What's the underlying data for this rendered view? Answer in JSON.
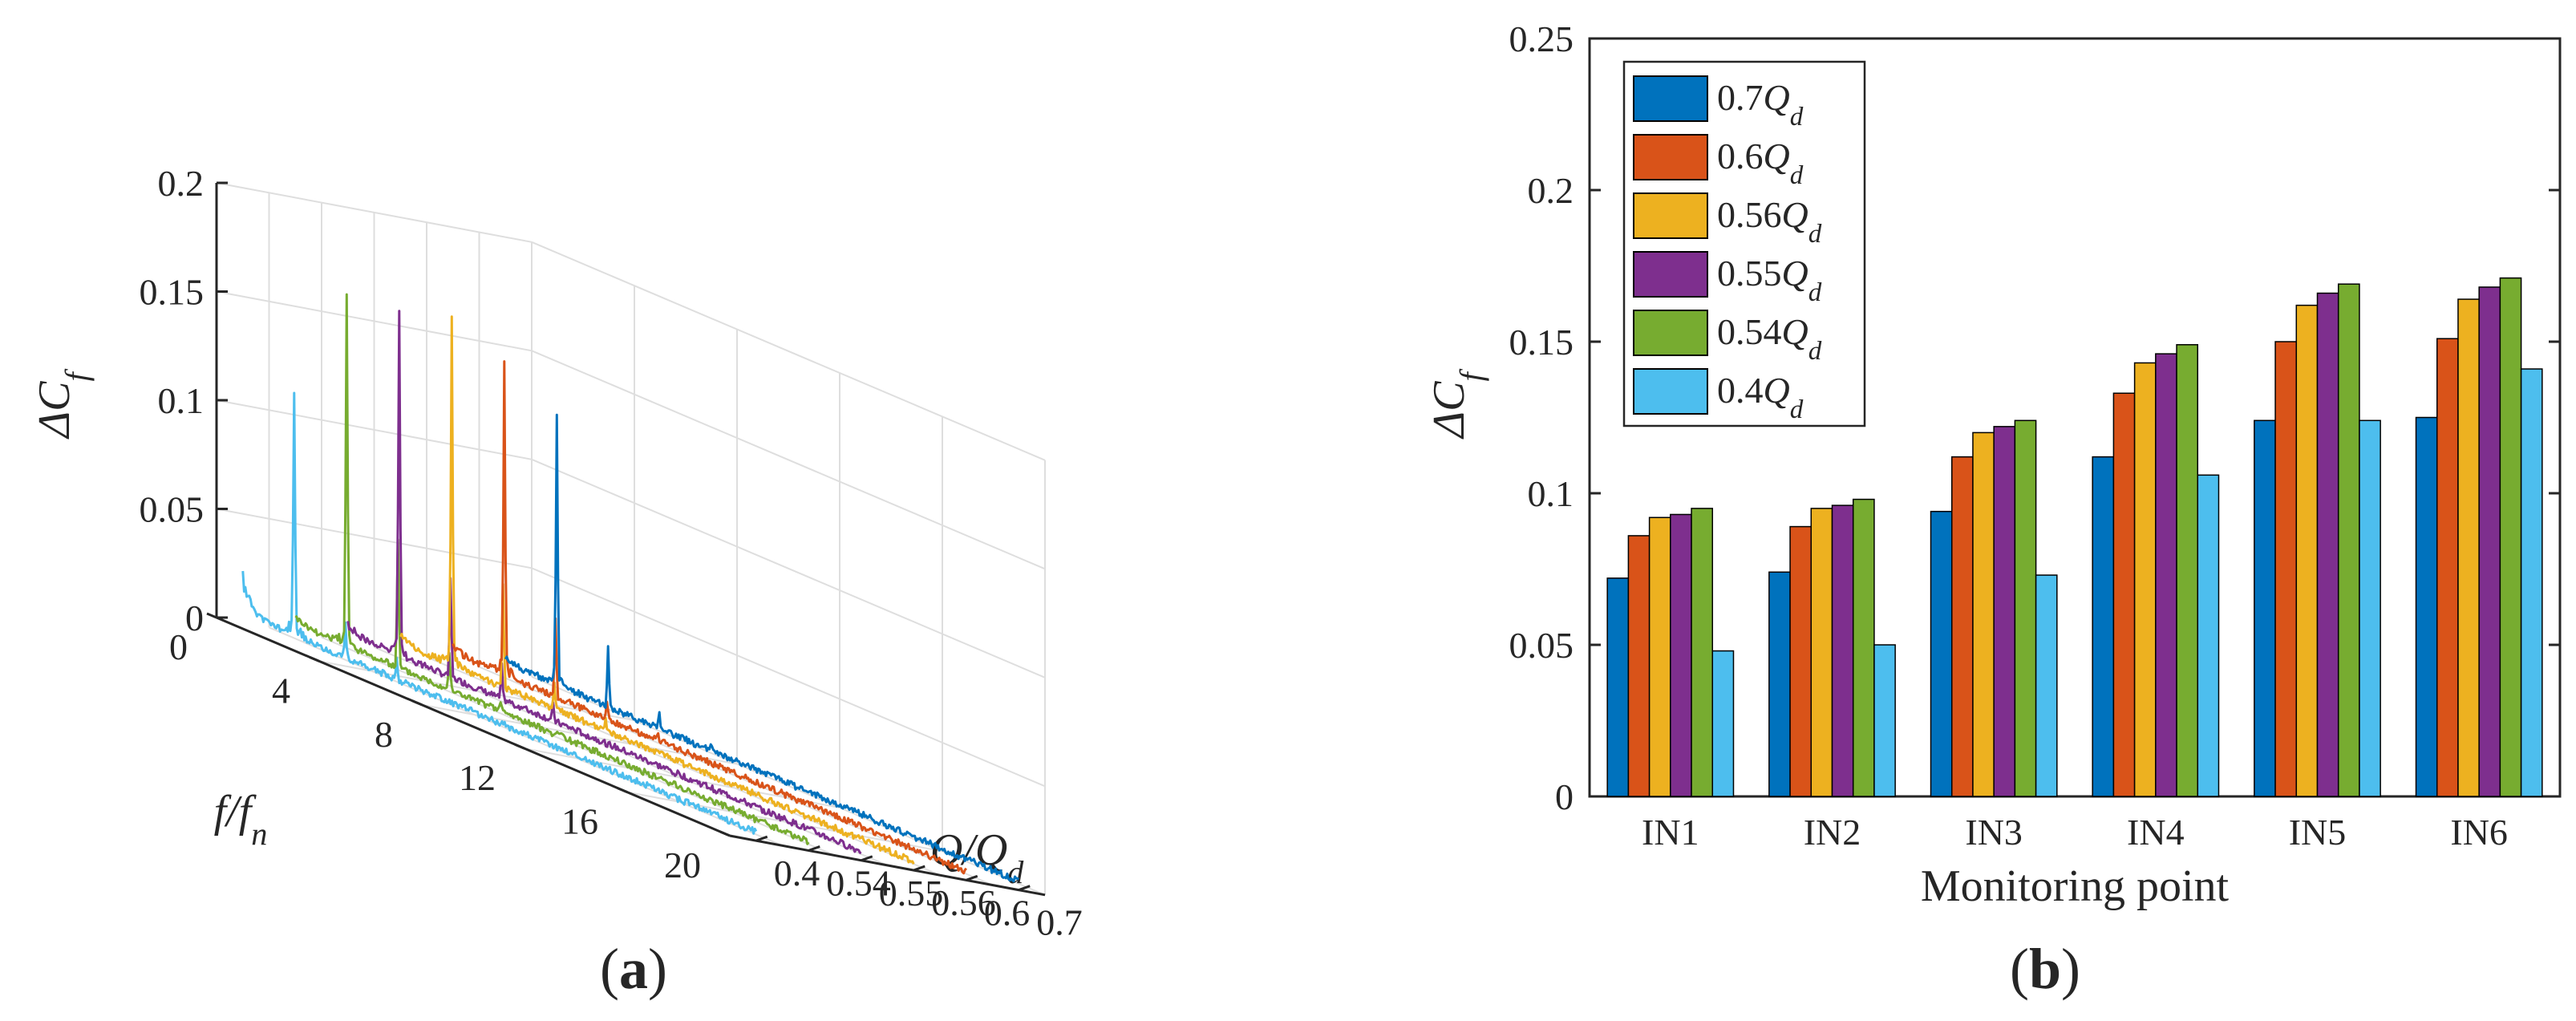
{
  "figure": {
    "panel_a": {
      "open": "(",
      "letter": "a",
      "close": ")"
    },
    "panel_b": {
      "open": "(",
      "letter": "b",
      "close": ")"
    }
  },
  "chart_data": [
    {
      "type": "line",
      "subtype": "3d-waterfall",
      "title": "",
      "zlabel": {
        "main": "ΔC",
        "sub": "f"
      },
      "xlabel": {
        "main": "f/f",
        "sub": "n"
      },
      "ylabel": {
        "main": "Q/Q",
        "sub": "d"
      },
      "xlim": [
        0,
        20
      ],
      "zlim": [
        0,
        0.2
      ],
      "x_ticks": [
        "0",
        "4",
        "8",
        "12",
        "16",
        "20"
      ],
      "z_ticks": [
        "0",
        "0.05",
        "0.1",
        "0.15",
        "0.2"
      ],
      "y_tick_labels": [
        "0.4",
        "0.54",
        "0.55",
        "0.56",
        "0.6",
        "0.7"
      ],
      "series": [
        {
          "name": "0.4",
          "color": "#4DBEEE",
          "low_freq_peak": 0.02,
          "peaks": [
            {
              "f": 2,
              "value": 0.105
            },
            {
              "f": 4,
              "value": 0.018
            },
            {
              "f": 6,
              "value": 0.012
            }
          ]
        },
        {
          "name": "0.54",
          "color": "#77AC30",
          "low_freq_peak": 0.005,
          "peaks": [
            {
              "f": 2,
              "value": 0.159
            },
            {
              "f": 4,
              "value": 0.062
            },
            {
              "f": 6,
              "value": 0.02
            },
            {
              "f": 8,
              "value": 0.008
            }
          ]
        },
        {
          "name": "0.55",
          "color": "#7E2F8E",
          "low_freq_peak": 0.006,
          "peaks": [
            {
              "f": 2,
              "value": 0.16
            },
            {
              "f": 4,
              "value": 0.05
            },
            {
              "f": 6,
              "value": 0.018
            },
            {
              "f": 8,
              "value": 0.01
            }
          ]
        },
        {
          "name": "0.56",
          "color": "#EDB120",
          "low_freq_peak": 0.005,
          "peaks": [
            {
              "f": 2,
              "value": 0.153
            },
            {
              "f": 4,
              "value": 0.05
            },
            {
              "f": 6,
              "value": 0.015
            },
            {
              "f": 8,
              "value": 0.008
            }
          ]
        },
        {
          "name": "0.6",
          "color": "#D95319",
          "low_freq_peak": 0.005,
          "peaks": [
            {
              "f": 2,
              "value": 0.141
            },
            {
              "f": 4,
              "value": 0.04
            },
            {
              "f": 6,
              "value": 0.012
            },
            {
              "f": 8,
              "value": 0.006
            }
          ]
        },
        {
          "name": "0.7",
          "color": "#0072BD",
          "low_freq_peak": 0.004,
          "peaks": [
            {
              "f": 2,
              "value": 0.125
            },
            {
              "f": 4,
              "value": 0.03
            },
            {
              "f": 6,
              "value": 0.01
            },
            {
              "f": 8,
              "value": 0.006
            }
          ]
        }
      ]
    },
    {
      "type": "bar",
      "title": "",
      "xlabel": "Monitoring point",
      "ylabel": {
        "main": "ΔC",
        "sub": "f"
      },
      "ylim": [
        0,
        0.25
      ],
      "y_ticks": [
        "0",
        "0.05",
        "0.1",
        "0.15",
        "0.2",
        "0.25"
      ],
      "categories": [
        "IN1",
        "IN2",
        "IN3",
        "IN4",
        "IN5",
        "IN6"
      ],
      "legend_position": "top-left",
      "series": [
        {
          "name": "0.7",
          "label_main": "0.7",
          "label_q": "Q",
          "label_sub": "d",
          "color": "#0072BD",
          "values": [
            0.072,
            0.074,
            0.094,
            0.112,
            0.124,
            0.125
          ]
        },
        {
          "name": "0.6",
          "label_main": "0.6",
          "label_q": "Q",
          "label_sub": "d",
          "color": "#D95319",
          "values": [
            0.086,
            0.089,
            0.112,
            0.133,
            0.15,
            0.151
          ]
        },
        {
          "name": "0.56",
          "label_main": "0.56",
          "label_q": "Q",
          "label_sub": "d",
          "color": "#EDB120",
          "values": [
            0.092,
            0.095,
            0.12,
            0.143,
            0.162,
            0.164
          ]
        },
        {
          "name": "0.55",
          "label_main": "0.55",
          "label_q": "Q",
          "label_sub": "d",
          "color": "#7E2F8E",
          "values": [
            0.093,
            0.096,
            0.122,
            0.146,
            0.166,
            0.168
          ]
        },
        {
          "name": "0.54",
          "label_main": "0.54",
          "label_q": "Q",
          "label_sub": "d",
          "color": "#77AC30",
          "values": [
            0.095,
            0.098,
            0.124,
            0.149,
            0.169,
            0.171
          ]
        },
        {
          "name": "0.4",
          "label_main": "0.4",
          "label_q": "Q",
          "label_sub": "d",
          "color": "#4DBEEE",
          "values": [
            0.048,
            0.05,
            0.073,
            0.106,
            0.124,
            0.141
          ]
        }
      ]
    }
  ]
}
